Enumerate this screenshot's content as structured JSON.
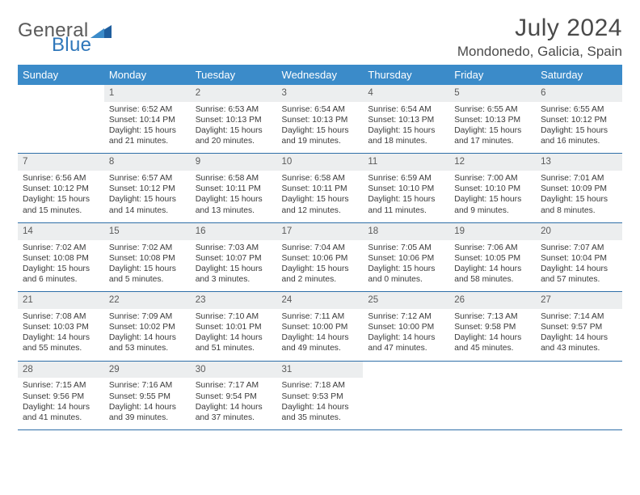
{
  "brand": {
    "line1": "General",
    "line2": "Blue",
    "text_color": "#5a5a5a",
    "accent_color": "#2f77ba"
  },
  "title": "July 2024",
  "location": "Mondonedo, Galicia, Spain",
  "colors": {
    "header_bg": "#3b8bc9",
    "header_text": "#ffffff",
    "daynum_bg": "#eceeef",
    "cell_border": "#2f6fa8",
    "body_text": "#3a3a3a"
  },
  "weekdays": [
    "Sunday",
    "Monday",
    "Tuesday",
    "Wednesday",
    "Thursday",
    "Friday",
    "Saturday"
  ],
  "weeks": [
    {
      "nums": [
        "",
        "1",
        "2",
        "3",
        "4",
        "5",
        "6"
      ],
      "cells": [
        null,
        {
          "sr": "Sunrise: 6:52 AM",
          "ss": "Sunset: 10:14 PM",
          "d1": "Daylight: 15 hours",
          "d2": "and 21 minutes."
        },
        {
          "sr": "Sunrise: 6:53 AM",
          "ss": "Sunset: 10:13 PM",
          "d1": "Daylight: 15 hours",
          "d2": "and 20 minutes."
        },
        {
          "sr": "Sunrise: 6:54 AM",
          "ss": "Sunset: 10:13 PM",
          "d1": "Daylight: 15 hours",
          "d2": "and 19 minutes."
        },
        {
          "sr": "Sunrise: 6:54 AM",
          "ss": "Sunset: 10:13 PM",
          "d1": "Daylight: 15 hours",
          "d2": "and 18 minutes."
        },
        {
          "sr": "Sunrise: 6:55 AM",
          "ss": "Sunset: 10:13 PM",
          "d1": "Daylight: 15 hours",
          "d2": "and 17 minutes."
        },
        {
          "sr": "Sunrise: 6:55 AM",
          "ss": "Sunset: 10:12 PM",
          "d1": "Daylight: 15 hours",
          "d2": "and 16 minutes."
        }
      ]
    },
    {
      "nums": [
        "7",
        "8",
        "9",
        "10",
        "11",
        "12",
        "13"
      ],
      "cells": [
        {
          "sr": "Sunrise: 6:56 AM",
          "ss": "Sunset: 10:12 PM",
          "d1": "Daylight: 15 hours",
          "d2": "and 15 minutes."
        },
        {
          "sr": "Sunrise: 6:57 AM",
          "ss": "Sunset: 10:12 PM",
          "d1": "Daylight: 15 hours",
          "d2": "and 14 minutes."
        },
        {
          "sr": "Sunrise: 6:58 AM",
          "ss": "Sunset: 10:11 PM",
          "d1": "Daylight: 15 hours",
          "d2": "and 13 minutes."
        },
        {
          "sr": "Sunrise: 6:58 AM",
          "ss": "Sunset: 10:11 PM",
          "d1": "Daylight: 15 hours",
          "d2": "and 12 minutes."
        },
        {
          "sr": "Sunrise: 6:59 AM",
          "ss": "Sunset: 10:10 PM",
          "d1": "Daylight: 15 hours",
          "d2": "and 11 minutes."
        },
        {
          "sr": "Sunrise: 7:00 AM",
          "ss": "Sunset: 10:10 PM",
          "d1": "Daylight: 15 hours",
          "d2": "and 9 minutes."
        },
        {
          "sr": "Sunrise: 7:01 AM",
          "ss": "Sunset: 10:09 PM",
          "d1": "Daylight: 15 hours",
          "d2": "and 8 minutes."
        }
      ]
    },
    {
      "nums": [
        "14",
        "15",
        "16",
        "17",
        "18",
        "19",
        "20"
      ],
      "cells": [
        {
          "sr": "Sunrise: 7:02 AM",
          "ss": "Sunset: 10:08 PM",
          "d1": "Daylight: 15 hours",
          "d2": "and 6 minutes."
        },
        {
          "sr": "Sunrise: 7:02 AM",
          "ss": "Sunset: 10:08 PM",
          "d1": "Daylight: 15 hours",
          "d2": "and 5 minutes."
        },
        {
          "sr": "Sunrise: 7:03 AM",
          "ss": "Sunset: 10:07 PM",
          "d1": "Daylight: 15 hours",
          "d2": "and 3 minutes."
        },
        {
          "sr": "Sunrise: 7:04 AM",
          "ss": "Sunset: 10:06 PM",
          "d1": "Daylight: 15 hours",
          "d2": "and 2 minutes."
        },
        {
          "sr": "Sunrise: 7:05 AM",
          "ss": "Sunset: 10:06 PM",
          "d1": "Daylight: 15 hours",
          "d2": "and 0 minutes."
        },
        {
          "sr": "Sunrise: 7:06 AM",
          "ss": "Sunset: 10:05 PM",
          "d1": "Daylight: 14 hours",
          "d2": "and 58 minutes."
        },
        {
          "sr": "Sunrise: 7:07 AM",
          "ss": "Sunset: 10:04 PM",
          "d1": "Daylight: 14 hours",
          "d2": "and 57 minutes."
        }
      ]
    },
    {
      "nums": [
        "21",
        "22",
        "23",
        "24",
        "25",
        "26",
        "27"
      ],
      "cells": [
        {
          "sr": "Sunrise: 7:08 AM",
          "ss": "Sunset: 10:03 PM",
          "d1": "Daylight: 14 hours",
          "d2": "and 55 minutes."
        },
        {
          "sr": "Sunrise: 7:09 AM",
          "ss": "Sunset: 10:02 PM",
          "d1": "Daylight: 14 hours",
          "d2": "and 53 minutes."
        },
        {
          "sr": "Sunrise: 7:10 AM",
          "ss": "Sunset: 10:01 PM",
          "d1": "Daylight: 14 hours",
          "d2": "and 51 minutes."
        },
        {
          "sr": "Sunrise: 7:11 AM",
          "ss": "Sunset: 10:00 PM",
          "d1": "Daylight: 14 hours",
          "d2": "and 49 minutes."
        },
        {
          "sr": "Sunrise: 7:12 AM",
          "ss": "Sunset: 10:00 PM",
          "d1": "Daylight: 14 hours",
          "d2": "and 47 minutes."
        },
        {
          "sr": "Sunrise: 7:13 AM",
          "ss": "Sunset: 9:58 PM",
          "d1": "Daylight: 14 hours",
          "d2": "and 45 minutes."
        },
        {
          "sr": "Sunrise: 7:14 AM",
          "ss": "Sunset: 9:57 PM",
          "d1": "Daylight: 14 hours",
          "d2": "and 43 minutes."
        }
      ]
    },
    {
      "nums": [
        "28",
        "29",
        "30",
        "31",
        "",
        "",
        ""
      ],
      "cells": [
        {
          "sr": "Sunrise: 7:15 AM",
          "ss": "Sunset: 9:56 PM",
          "d1": "Daylight: 14 hours",
          "d2": "and 41 minutes."
        },
        {
          "sr": "Sunrise: 7:16 AM",
          "ss": "Sunset: 9:55 PM",
          "d1": "Daylight: 14 hours",
          "d2": "and 39 minutes."
        },
        {
          "sr": "Sunrise: 7:17 AM",
          "ss": "Sunset: 9:54 PM",
          "d1": "Daylight: 14 hours",
          "d2": "and 37 minutes."
        },
        {
          "sr": "Sunrise: 7:18 AM",
          "ss": "Sunset: 9:53 PM",
          "d1": "Daylight: 14 hours",
          "d2": "and 35 minutes."
        },
        null,
        null,
        null
      ]
    }
  ]
}
